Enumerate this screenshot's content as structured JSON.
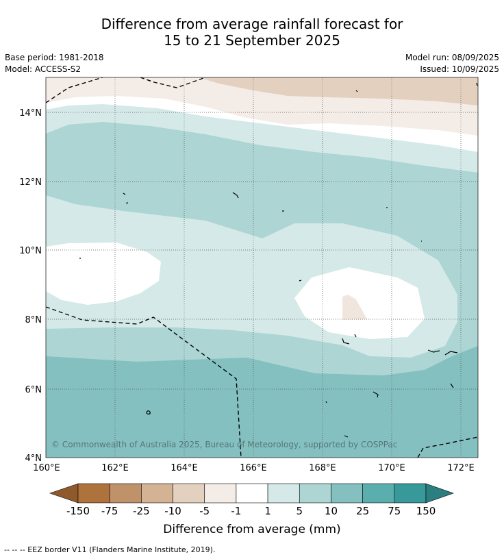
{
  "title": {
    "line1": "Difference from average rainfall forecast for",
    "line2": "15 to 21 September 2025"
  },
  "meta": {
    "base_period": "Base period: 1981-2018",
    "model": "Model: ACCESS-S2",
    "model_run": "Model run: 08/09/2025",
    "issued": "Issued: 10/09/2025"
  },
  "map": {
    "lat_labels": [
      "14°N",
      "12°N",
      "10°N",
      "8°N",
      "6°N",
      "4°N"
    ],
    "lon_labels": [
      "160°E",
      "162°E",
      "164°E",
      "166°E",
      "168°E",
      "170°E",
      "172°E"
    ],
    "copyright": "© Commonwealth of Australia 2025, Bureau of Meteorology, supported by COSPPac"
  },
  "legend": {
    "ticks": [
      "-150",
      "-75",
      "-25",
      "-10",
      "-5",
      "-1",
      "1",
      "5",
      "10",
      "25",
      "75",
      "150"
    ],
    "colors": [
      "#8e5a2c",
      "#ae733c",
      "#c0926a",
      "#d4b294",
      "#e3d0bf",
      "#f4ede7",
      "#ffffff",
      "#d4e9e8",
      "#acd5d4",
      "#84c0bf",
      "#5aaeae",
      "#37999a",
      "#2b7f80"
    ],
    "title": "Difference from average (mm)"
  },
  "footnote": "-- -- -- EEZ border V11 (Flanders Marine Institute, 2019)."
}
